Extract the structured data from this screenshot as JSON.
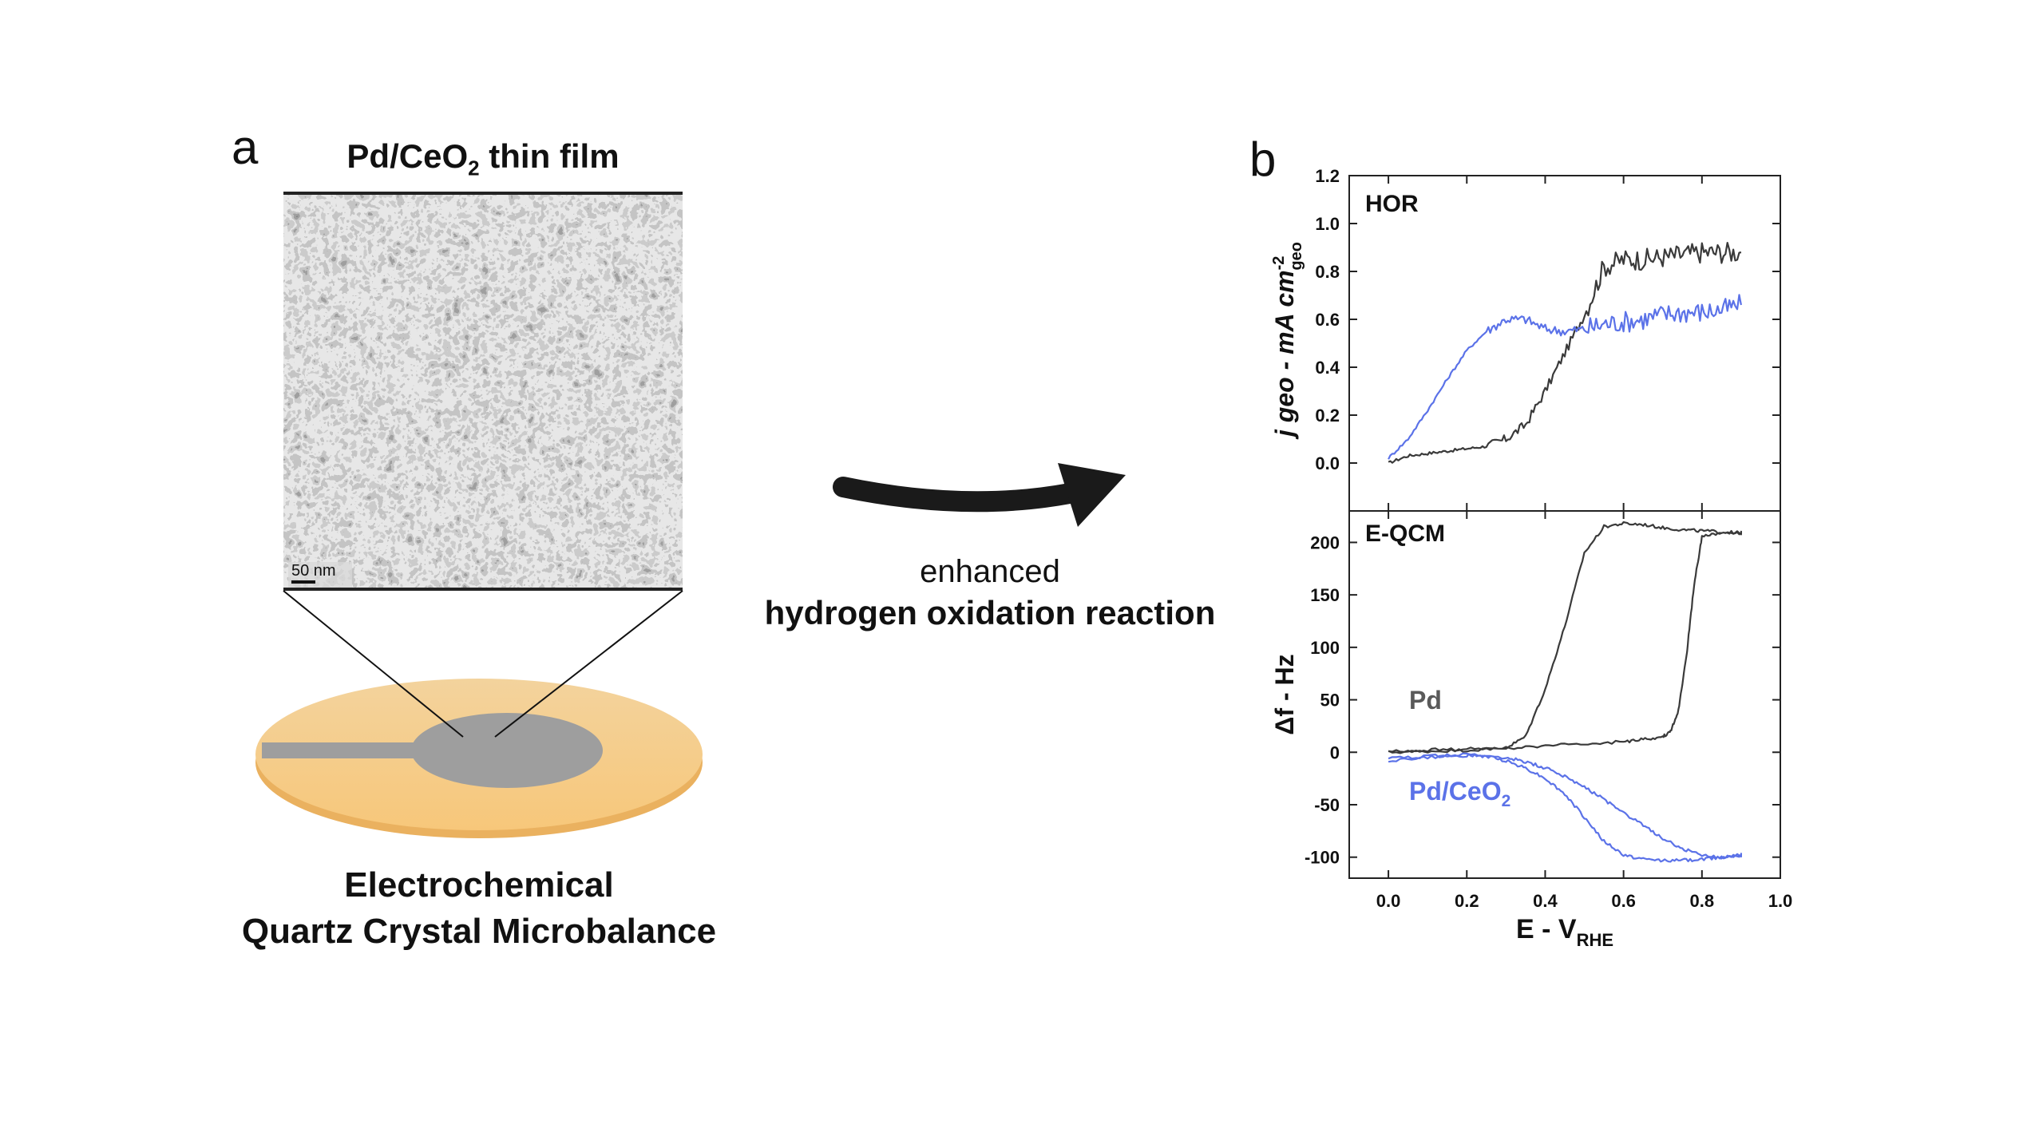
{
  "panel_a": {
    "letter": "a",
    "film_title": "Pd/CeO",
    "film_title_sub": "2",
    "film_title_tail": " thin film",
    "scale_bar": "50 nm",
    "qcm_line1": "Electrochemical",
    "qcm_line2": "Quartz Crystal Microbalance"
  },
  "arrow": {
    "line1": "enhanced",
    "line2": "hydrogen oxidation reaction"
  },
  "panel_b": {
    "letter": "b"
  },
  "colors": {
    "pd": "#3a3a3a",
    "pd_ceo2": "#5b72e8",
    "disk_gold": "#f7c97c",
    "electrode_gray": "#9e9e9e",
    "arrow": "#1a1a1a"
  },
  "chart_data": [
    {
      "type": "line",
      "panel_label": "HOR",
      "ylabel_main": "j geo - mA cm",
      "ylabel_sup": "-2",
      "ylabel_sub": "geo",
      "ylim": [
        -0.2,
        1.2
      ],
      "yticks": [
        "0.0",
        "0.2",
        "0.4",
        "0.6",
        "0.8",
        "1.0",
        "1.2"
      ],
      "xlim": [
        -0.1,
        1.0
      ],
      "series": [
        {
          "name": "Pd",
          "color": "#3a3a3a",
          "x": [
            0.0,
            0.05,
            0.1,
            0.15,
            0.2,
            0.25,
            0.3,
            0.35,
            0.4,
            0.45,
            0.5,
            0.55,
            0.6,
            0.65,
            0.7,
            0.75,
            0.8,
            0.85,
            0.9
          ],
          "y": [
            0.0,
            0.03,
            0.04,
            0.05,
            0.06,
            0.07,
            0.1,
            0.16,
            0.3,
            0.46,
            0.62,
            0.82,
            0.85,
            0.85,
            0.86,
            0.87,
            0.88,
            0.88,
            0.88
          ]
        },
        {
          "name": "Pd/CeO2",
          "color": "#5b72e8",
          "x": [
            0.0,
            0.05,
            0.1,
            0.15,
            0.2,
            0.25,
            0.3,
            0.35,
            0.4,
            0.45,
            0.5,
            0.55,
            0.6,
            0.65,
            0.7,
            0.75,
            0.8,
            0.85,
            0.9
          ],
          "y": [
            0.02,
            0.1,
            0.22,
            0.35,
            0.47,
            0.55,
            0.6,
            0.6,
            0.56,
            0.55,
            0.56,
            0.58,
            0.59,
            0.6,
            0.62,
            0.63,
            0.63,
            0.64,
            0.66
          ]
        }
      ]
    },
    {
      "type": "line",
      "panel_label": "E-QCM",
      "ylabel": "Δf - Hz",
      "xlabel_main": "E - V",
      "xlabel_sub": "RHE",
      "xlim": [
        -0.1,
        1.0
      ],
      "xticks": [
        "0.0",
        "0.2",
        "0.4",
        "0.6",
        "0.8",
        "1.0"
      ],
      "ylim": [
        -120,
        230
      ],
      "yticks": [
        "-100",
        "-50",
        "0",
        "50",
        "100",
        "150",
        "200"
      ],
      "legend": [
        {
          "label": "Pd",
          "color": "#5a5a5a"
        },
        {
          "label": "Pd/CeO",
          "sub": "2",
          "color": "#5b72e8"
        }
      ],
      "series": [
        {
          "name": "Pd",
          "color": "#3a3a3a",
          "x": [
            0.0,
            0.1,
            0.2,
            0.3,
            0.35,
            0.4,
            0.45,
            0.5,
            0.55,
            0.6,
            0.65,
            0.7,
            0.75,
            0.8,
            0.85,
            0.9,
            0.9,
            0.85,
            0.8,
            0.78,
            0.76,
            0.74,
            0.72,
            0.7,
            0.65,
            0.6,
            0.5,
            0.4,
            0.3,
            0.2,
            0.1,
            0.0
          ],
          "y": [
            0,
            1,
            2,
            4,
            15,
            60,
            120,
            190,
            215,
            218,
            217,
            214,
            212,
            211,
            210,
            209,
            209,
            210,
            205,
            160,
            90,
            40,
            20,
            15,
            12,
            10,
            8,
            6,
            4,
            3,
            2,
            1
          ]
        },
        {
          "name": "Pd/CeO2",
          "color": "#5b72e8",
          "x": [
            0.0,
            0.1,
            0.2,
            0.25,
            0.3,
            0.35,
            0.4,
            0.45,
            0.5,
            0.55,
            0.6,
            0.65,
            0.7,
            0.75,
            0.8,
            0.85,
            0.9,
            0.9,
            0.85,
            0.8,
            0.75,
            0.7,
            0.65,
            0.6,
            0.55,
            0.5,
            0.45,
            0.4,
            0.35,
            0.3,
            0.2,
            0.1,
            0.0
          ],
          "y": [
            -8,
            -5,
            -3,
            -4,
            -8,
            -15,
            -25,
            -40,
            -62,
            -85,
            -98,
            -102,
            -103,
            -103,
            -102,
            -100,
            -98,
            -98,
            -100,
            -98,
            -92,
            -82,
            -70,
            -58,
            -45,
            -33,
            -23,
            -15,
            -9,
            -5,
            -2,
            -4,
            -6
          ]
        }
      ]
    }
  ]
}
